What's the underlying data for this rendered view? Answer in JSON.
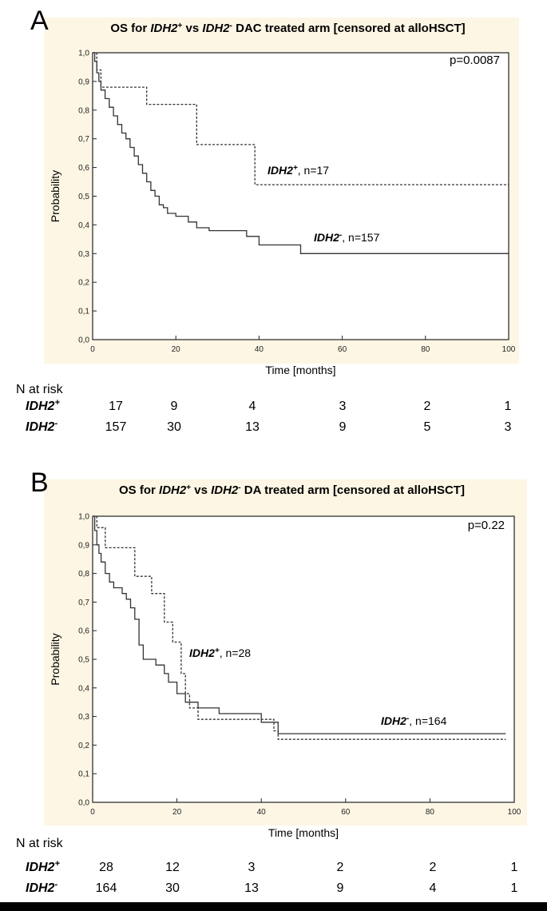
{
  "chart_data": [
    {
      "type": "line",
      "panel_label": "A",
      "title_parts": [
        "OS for ",
        "IDH2",
        "+",
        " vs ",
        "IDH2",
        "-",
        " DAC treated arm [censored at alloHSCT]"
      ],
      "xlabel": "Time [months]",
      "ylabel": "Probability",
      "xlim": [
        0,
        100
      ],
      "ylim": [
        0,
        1
      ],
      "x_ticks": [
        "0",
        "20",
        "40",
        "60",
        "80",
        "100"
      ],
      "y_ticks": [
        "0,0",
        "0,1",
        "0,2",
        "0,3",
        "0,4",
        "0,5",
        "0,6",
        "0,7",
        "0,8",
        "0,9",
        "1,0"
      ],
      "p_value": "p=0.0087",
      "series": [
        {
          "name": "IDH2+",
          "label_gene": "IDH2",
          "label_sup": "+",
          "label_n": ", n=17",
          "style": "dashed",
          "points": [
            [
              0,
              1.0
            ],
            [
              1,
              0.94
            ],
            [
              2,
              0.88
            ],
            [
              13,
              0.82
            ],
            [
              25,
              0.68
            ],
            [
              39,
              0.54
            ],
            [
              100,
              0.54
            ]
          ]
        },
        {
          "name": "IDH2-",
          "label_gene": "IDH2",
          "label_sup": "-",
          "label_n": ", n=157",
          "style": "solid",
          "points": [
            [
              0,
              1.0
            ],
            [
              0.5,
              0.97
            ],
            [
              1,
              0.93
            ],
            [
              1.5,
              0.9
            ],
            [
              2,
              0.87
            ],
            [
              3,
              0.84
            ],
            [
              4,
              0.81
            ],
            [
              5,
              0.78
            ],
            [
              6,
              0.75
            ],
            [
              7,
              0.72
            ],
            [
              8,
              0.7
            ],
            [
              9,
              0.67
            ],
            [
              10,
              0.64
            ],
            [
              11,
              0.61
            ],
            [
              12,
              0.58
            ],
            [
              13,
              0.55
            ],
            [
              14,
              0.52
            ],
            [
              15,
              0.5
            ],
            [
              16,
              0.47
            ],
            [
              17,
              0.46
            ],
            [
              18,
              0.44
            ],
            [
              20,
              0.43
            ],
            [
              23,
              0.41
            ],
            [
              25,
              0.39
            ],
            [
              28,
              0.38
            ],
            [
              37,
              0.36
            ],
            [
              40,
              0.33
            ],
            [
              50,
              0.3
            ],
            [
              100,
              0.3
            ]
          ]
        }
      ],
      "risk_table": {
        "header": "N at risk",
        "rows": [
          {
            "gene": "IDH2",
            "sup": "+",
            "values": [
              "17",
              "9",
              "4",
              "3",
              "2",
              "1"
            ]
          },
          {
            "gene": "IDH2",
            "sup": "-",
            "values": [
              "157",
              "30",
              "13",
              "9",
              "5",
              "3"
            ]
          }
        ]
      }
    },
    {
      "type": "line",
      "panel_label": "B",
      "title_parts": [
        "OS for ",
        "IDH2",
        "+",
        " vs ",
        "IDH2",
        "-",
        " DA treated arm [censored at alloHSCT]"
      ],
      "xlabel": "Time [months]",
      "ylabel": "Probability",
      "xlim": [
        0,
        100
      ],
      "ylim": [
        0,
        1
      ],
      "x_ticks": [
        "0",
        "20",
        "40",
        "60",
        "80",
        "100"
      ],
      "y_ticks": [
        "0,0",
        "0,1",
        "0,2",
        "0,3",
        "0,4",
        "0,5",
        "0,6",
        "0,7",
        "0,8",
        "0,9",
        "1,0"
      ],
      "p_value": "p=0.22",
      "series": [
        {
          "name": "IDH2+",
          "label_gene": "IDH2",
          "label_sup": "+",
          "label_n": ", n=28",
          "style": "dashed",
          "points": [
            [
              0,
              1.0
            ],
            [
              1,
              0.96
            ],
            [
              3,
              0.89
            ],
            [
              10,
              0.79
            ],
            [
              14,
              0.73
            ],
            [
              17,
              0.63
            ],
            [
              19,
              0.56
            ],
            [
              21,
              0.45
            ],
            [
              22,
              0.38
            ],
            [
              23,
              0.33
            ],
            [
              25,
              0.29
            ],
            [
              43,
              0.25
            ],
            [
              44,
              0.22
            ],
            [
              98,
              0.22
            ]
          ]
        },
        {
          "name": "IDH2-",
          "label_gene": "IDH2",
          "label_sup": "-",
          "label_n": ", n=164",
          "style": "solid",
          "points": [
            [
              0,
              1.0
            ],
            [
              0.5,
              0.95
            ],
            [
              1,
              0.9
            ],
            [
              1.5,
              0.87
            ],
            [
              2,
              0.84
            ],
            [
              3,
              0.8
            ],
            [
              4,
              0.77
            ],
            [
              5,
              0.75
            ],
            [
              7,
              0.73
            ],
            [
              8,
              0.71
            ],
            [
              9,
              0.68
            ],
            [
              10,
              0.64
            ],
            [
              11,
              0.55
            ],
            [
              12,
              0.5
            ],
            [
              15,
              0.48
            ],
            [
              17,
              0.45
            ],
            [
              18,
              0.42
            ],
            [
              20,
              0.38
            ],
            [
              22,
              0.35
            ],
            [
              25,
              0.33
            ],
            [
              30,
              0.31
            ],
            [
              40,
              0.28
            ],
            [
              44,
              0.24
            ],
            [
              98,
              0.24
            ]
          ]
        }
      ],
      "risk_table": {
        "header": "N at risk",
        "rows": [
          {
            "gene": "IDH2",
            "sup": "+",
            "values": [
              "28",
              "12",
              "3",
              "2",
              "2",
              "1"
            ]
          },
          {
            "gene": "IDH2",
            "sup": "-",
            "values": [
              "164",
              "30",
              "13",
              "9",
              "4",
              "1"
            ]
          }
        ]
      }
    }
  ]
}
